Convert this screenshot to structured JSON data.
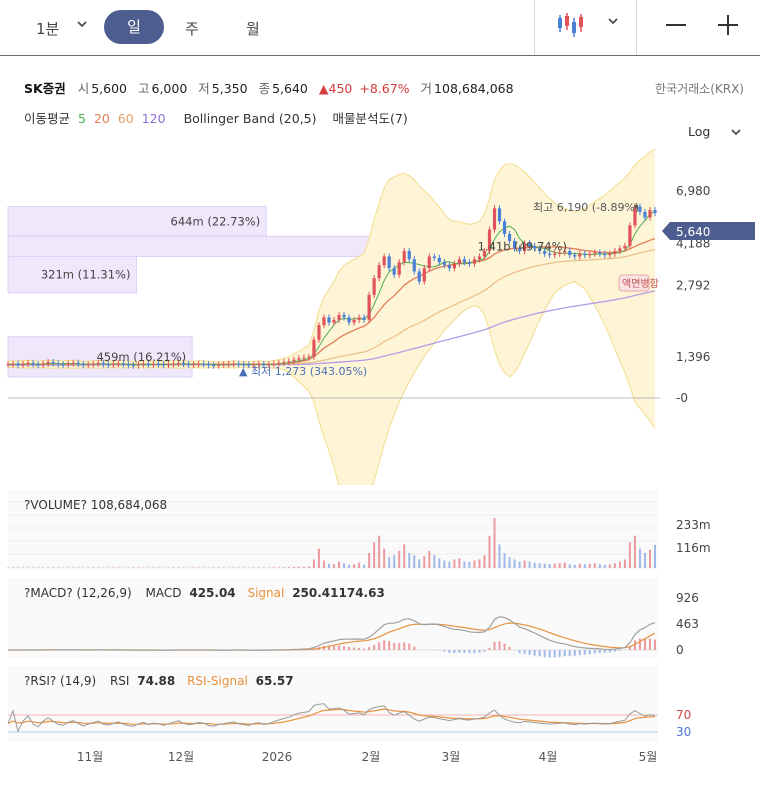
{
  "toolbar": {
    "interval": "1분",
    "tabs": [
      "일",
      "주",
      "월"
    ],
    "active_tab": "일"
  },
  "stock": {
    "name": "SK증권",
    "open_label": "시",
    "open": "5,600",
    "high_label": "고",
    "high": "6,000",
    "low_label": "저",
    "low": "5,350",
    "close_label": "종",
    "close": "5,640",
    "change": "▲450",
    "change_pct": "+8.67%",
    "volume_label": "거",
    "volume": "108,684,068",
    "exchange": "한국거래소(KRX)"
  },
  "indicators": {
    "ma_label": "이동평균",
    "ma_periods": [
      "5",
      "20",
      "60",
      "120"
    ],
    "bollinger": "Bollinger Band (20,5)",
    "volume_profile": "매물분석도(7)",
    "scale": "Log"
  },
  "colors": {
    "up": "#e0535a",
    "down": "#4a7fd6",
    "ma5": "#4caf50",
    "ma20": "#e57d5a",
    "ma60": "#ecc08d",
    "ma120": "#b49be6",
    "band": "#fdf5d5",
    "profile": "#efe8fb",
    "accent": "#4e5d8f"
  },
  "chart_data": [
    {
      "type": "candlestick",
      "title": "SK증권",
      "scale": "log",
      "y_ticks": [
        "6,980",
        "4,188",
        "2,792",
        "1,396",
        "0"
      ],
      "y_tick_values": [
        6980,
        4188,
        2792,
        1396,
        0
      ],
      "x_ticks": [
        "11월",
        "12월",
        "2026",
        "2월",
        "3월",
        "4월",
        "5월"
      ],
      "current_price": "5,640",
      "high_annotation": "최고 6,190 (-8.89%)",
      "low_annotation": "최저 1,273 (343.05%)",
      "volume_profile": [
        {
          "label": "644m (22.73%)",
          "price_low": 4500,
          "price_high": 6000,
          "share": 22.73
        },
        {
          "label": "1.41b (49.74%)",
          "price_low": 3700,
          "price_high": 4500,
          "share": 49.74
        },
        {
          "label": "321m (11.31%)",
          "price_low": 2600,
          "price_high": 3700,
          "share": 11.31
        },
        {
          "label": "459m (16.21%)",
          "price_low": 1150,
          "price_high": 1700,
          "share": 16.21
        }
      ],
      "marker_label": "액면병합",
      "close_series": [
        1300,
        1310,
        1290,
        1305,
        1320,
        1300,
        1290,
        1310,
        1330,
        1315,
        1300,
        1295,
        1310,
        1320,
        1305,
        1290,
        1300,
        1310,
        1320,
        1300,
        1295,
        1305,
        1315,
        1300,
        1290,
        1285,
        1300,
        1310,
        1295,
        1305,
        1300,
        1290,
        1300,
        1310,
        1320,
        1305,
        1295,
        1300,
        1310,
        1305,
        1290,
        1285,
        1295,
        1300,
        1305,
        1310,
        1300,
        1295,
        1290,
        1300,
        1305,
        1295,
        1300,
        1310,
        1320,
        1330,
        1340,
        1360,
        1380,
        1390,
        1400,
        1650,
        1900,
        2050,
        1950,
        2000,
        2100,
        2050,
        1950,
        2000,
        2050,
        2000,
        2550,
        3000,
        3400,
        3700,
        3300,
        3100,
        3500,
        3900,
        3600,
        3200,
        2900,
        3300,
        3700,
        3650,
        3500,
        3400,
        3300,
        3450,
        3600,
        3500,
        3450,
        3600,
        3700,
        3900,
        4800,
        5900,
        5200,
        4600,
        4300,
        4000,
        3900,
        4200,
        4100,
        4000,
        3900,
        3800,
        3750,
        3800,
        3850,
        3900,
        3750,
        3700,
        3800,
        3750,
        3800,
        3850,
        3800,
        3750,
        3800,
        3900,
        4000,
        4100,
        5000,
        6000,
        5700,
        5400,
        5800,
        5640
      ],
      "bollinger_upper": [
        1340,
        1340,
        1345,
        1350,
        1350,
        1345,
        1340,
        1345,
        1350,
        1350,
        1345,
        1345,
        1350,
        1350,
        1345,
        1340,
        1340,
        1345,
        1350,
        1345,
        1340,
        1340,
        1345,
        1345,
        1340,
        1335,
        1340,
        1345,
        1340,
        1340,
        1340,
        1335,
        1340,
        1345,
        1350,
        1345,
        1340,
        1340,
        1345,
        1345,
        1340,
        1335,
        1335,
        1340,
        1340,
        1345,
        1340,
        1340,
        1335,
        1340,
        1345,
        1340,
        1340,
        1350,
        1360,
        1380,
        1400,
        1440,
        1480,
        1520,
        1560,
        1800,
        2200,
        2500,
        2700,
        2900,
        3200,
        3400,
        3500,
        3600,
        3700,
        3800,
        4400,
        5300,
        6200,
        7200,
        7800,
        8000,
        8200,
        8300,
        8100,
        7800,
        7300,
        7000,
        6700,
        6300,
        6000,
        5600,
        5300,
        5200,
        5200,
        5100,
        5050,
        5100,
        5200,
        5600,
        6500,
        7800,
        8500,
        9000,
        9100,
        9000,
        8700,
        8400,
        8000,
        7600,
        7200,
        6800,
        6500,
        6200,
        6000,
        5900,
        5800,
        5700,
        5800,
        5900,
        6100,
        6300,
        6500,
        6700,
        7000,
        7300,
        7600,
        7900,
        8400,
        9000,
        9400,
        9800,
        10200,
        10500
      ],
      "bollinger_lower": [
        1260,
        1262,
        1258,
        1255,
        1255,
        1258,
        1260,
        1258,
        1255,
        1252,
        1255,
        1255,
        1252,
        1250,
        1255,
        1258,
        1258,
        1255,
        1252,
        1255,
        1258,
        1260,
        1255,
        1255,
        1258,
        1260,
        1258,
        1255,
        1258,
        1258,
        1258,
        1260,
        1258,
        1255,
        1252,
        1255,
        1258,
        1258,
        1255,
        1255,
        1258,
        1260,
        1260,
        1258,
        1258,
        1255,
        1258,
        1258,
        1260,
        1258,
        1255,
        1258,
        1258,
        1252,
        1245,
        1230,
        1200,
        1150,
        1100,
        1050,
        1000,
        900,
        750,
        640,
        560,
        480,
        400,
        350,
        320,
        300,
        300,
        320,
        360,
        420,
        500,
        600,
        700,
        800,
        900,
        1000,
        1100,
        1200,
        1300,
        1400,
        1500,
        1600,
        1700,
        1800,
        1900,
        2000,
        2100,
        2200,
        2250,
        2300,
        2250,
        2100,
        1800,
        1500,
        1300,
        1200,
        1150,
        1200,
        1300,
        1450,
        1600,
        1800,
        2000,
        2200,
        2400,
        2600,
        2700,
        2800,
        2850,
        2900,
        2800,
        2700,
        2500,
        2300,
        2100,
        1900,
        1700,
        1500,
        1350,
        1200,
        1050,
        900,
        850,
        800,
        750,
        700
      ],
      "ma20": [
        1300,
        1302,
        1301,
        1302,
        1304,
        1303,
        1302,
        1303,
        1305,
        1305,
        1304,
        1303,
        1304,
        1305,
        1304,
        1302,
        1302,
        1303,
        1304,
        1303,
        1302,
        1302,
        1303,
        1303,
        1302,
        1300,
        1300,
        1301,
        1300,
        1301,
        1301,
        1300,
        1300,
        1301,
        1302,
        1302,
        1301,
        1301,
        1302,
        1302,
        1301,
        1300,
        1300,
        1300,
        1301,
        1302,
        1302,
        1301,
        1300,
        1300,
        1301,
        1300,
        1300,
        1302,
        1305,
        1310,
        1315,
        1325,
        1335,
        1345,
        1360,
        1400,
        1460,
        1520,
        1570,
        1620,
        1680,
        1730,
        1770,
        1810,
        1850,
        1880,
        1950,
        2050,
        2180,
        2320,
        2430,
        2530,
        2660,
        2800,
        2900,
        2990,
        3050,
        3130,
        3210,
        3280,
        3330,
        3370,
        3400,
        3430,
        3460,
        3480,
        3490,
        3510,
        3530,
        3570,
        3650,
        3790,
        3880,
        3940,
        3980,
        4000,
        4010,
        4030,
        4040,
        4050,
        4060,
        4060,
        4060,
        4060,
        4050,
        4040,
        4010,
        3980,
        3950,
        3920,
        3900,
        3880,
        3860,
        3850,
        3840,
        3850,
        3870,
        3900,
        3980,
        4080,
        4170,
        4240,
        4330,
        4400
      ],
      "ma60": [
        1300,
        1300,
        1300,
        1300,
        1300,
        1300,
        1301,
        1301,
        1301,
        1302,
        1302,
        1302,
        1302,
        1302,
        1302,
        1302,
        1302,
        1302,
        1302,
        1302,
        1302,
        1302,
        1302,
        1302,
        1302,
        1302,
        1302,
        1302,
        1302,
        1302,
        1302,
        1302,
        1302,
        1302,
        1302,
        1302,
        1302,
        1302,
        1302,
        1302,
        1302,
        1302,
        1302,
        1302,
        1302,
        1302,
        1302,
        1302,
        1302,
        1302,
        1302,
        1302,
        1302,
        1303,
        1304,
        1305,
        1307,
        1310,
        1313,
        1316,
        1320,
        1328,
        1340,
        1355,
        1368,
        1382,
        1398,
        1412,
        1425,
        1438,
        1452,
        1465,
        1490,
        1525,
        1570,
        1620,
        1660,
        1700,
        1750,
        1810,
        1860,
        1900,
        1940,
        1990,
        2050,
        2110,
        2160,
        2210,
        2260,
        2310,
        2370,
        2420,
        2470,
        2530,
        2590,
        2660,
        2750,
        2870,
        2960,
        3040,
        3110,
        3170,
        3220,
        3270,
        3320,
        3360,
        3400,
        3430,
        3460,
        3490,
        3510,
        3530,
        3540,
        3550,
        3560,
        3570,
        3580,
        3590,
        3600,
        3610,
        3620,
        3640,
        3660,
        3690,
        3730,
        3780,
        3830,
        3870,
        3920,
        3960
      ],
      "ma120": [
        1290,
        1290,
        1290,
        1290,
        1290,
        1291,
        1291,
        1291,
        1291,
        1291,
        1292,
        1292,
        1292,
        1292,
        1292,
        1292,
        1292,
        1292,
        1292,
        1292,
        1293,
        1293,
        1293,
        1293,
        1293,
        1293,
        1293,
        1293,
        1293,
        1293,
        1293,
        1293,
        1294,
        1294,
        1294,
        1294,
        1294,
        1294,
        1294,
        1294,
        1294,
        1294,
        1294,
        1294,
        1294,
        1294,
        1295,
        1295,
        1295,
        1295,
        1295,
        1295,
        1295,
        1295,
        1296,
        1296,
        1297,
        1298,
        1299,
        1300,
        1302,
        1305,
        1309,
        1314,
        1318,
        1323,
        1328,
        1333,
        1338,
        1343,
        1348,
        1353,
        1362,
        1375,
        1390,
        1408,
        1425,
        1440,
        1458,
        1478,
        1498,
        1516,
        1534,
        1554,
        1576,
        1598,
        1618,
        1638,
        1658,
        1680,
        1702,
        1724,
        1745,
        1768,
        1792,
        1818,
        1850,
        1890,
        1925,
        1958,
        1988,
        2016,
        2042,
        2068,
        2094,
        2118,
        2142,
        2164,
        2186,
        2208,
        2228,
        2248,
        2266,
        2284,
        2302,
        2320,
        2338,
        2356,
        2374,
        2392,
        2410,
        2430,
        2452,
        2476,
        2504,
        2536,
        2566,
        2594,
        2624,
        2650
      ]
    },
    {
      "type": "bar",
      "title": "?VOLUME? 108,684,068",
      "y_ticks": [
        "233m",
        "116m"
      ],
      "values": [
        2,
        2,
        2,
        2,
        2,
        2,
        2,
        2,
        2,
        2,
        2,
        2,
        2,
        2,
        2,
        2,
        2,
        2,
        2,
        2,
        2,
        2,
        2,
        2,
        2,
        2,
        2,
        2,
        2,
        2,
        2,
        2,
        2,
        2,
        2,
        2,
        2,
        2,
        2,
        2,
        2,
        2,
        2,
        2,
        2,
        2,
        2,
        2,
        2,
        2,
        2,
        2,
        2,
        3,
        3,
        3,
        4,
        4,
        5,
        5,
        6,
        40,
        90,
        35,
        20,
        18,
        30,
        22,
        15,
        18,
        25,
        15,
        70,
        120,
        150,
        90,
        50,
        60,
        80,
        110,
        70,
        60,
        40,
        55,
        80,
        60,
        45,
        35,
        30,
        40,
        45,
        30,
        28,
        35,
        40,
        60,
        150,
        233,
        110,
        70,
        50,
        40,
        30,
        35,
        30,
        25,
        22,
        20,
        18,
        20,
        22,
        25,
        18,
        15,
        20,
        18,
        20,
        22,
        18,
        15,
        18,
        22,
        30,
        40,
        120,
        150,
        90,
        70,
        85,
        108
      ]
    },
    {
      "type": "line",
      "title": "?MACD? (12,26,9)",
      "series_names": [
        "MACD",
        "Signal"
      ],
      "macd_value": "425.04",
      "signal_value": "250.41174.63",
      "y_ticks": [
        "926",
        "463",
        "0"
      ]
    },
    {
      "type": "line",
      "title": "?RSI? (14,9)",
      "series_names": [
        "RSI",
        "RSI-Signal"
      ],
      "rsi_value": "74.88",
      "rsi_signal_value": "65.57",
      "y_ticks": [
        "70",
        "30"
      ]
    }
  ]
}
